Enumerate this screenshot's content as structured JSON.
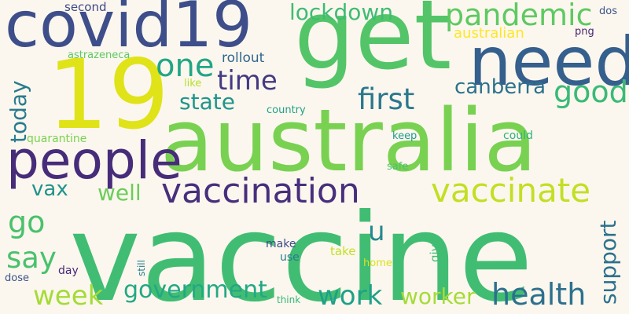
{
  "wordcloud": {
    "background": "#fbf7ee",
    "words": [
      {
        "text": "vaccine",
        "color": "#41bd73",
        "vertical": false
      },
      {
        "text": "australia",
        "color": "#79d151",
        "vertical": false
      },
      {
        "text": "get",
        "color": "#53c568",
        "vertical": false
      },
      {
        "text": "19",
        "color": "#dfe318",
        "vertical": false
      },
      {
        "text": "covid19",
        "color": "#3d4e8a",
        "vertical": false
      },
      {
        "text": "need",
        "color": "#355f8d",
        "vertical": false
      },
      {
        "text": "people",
        "color": "#472c7a",
        "vertical": false
      },
      {
        "text": "vaccination",
        "color": "#472f7d",
        "vertical": false
      },
      {
        "text": "vaccinate",
        "color": "#c2df23",
        "vertical": false
      },
      {
        "text": "pandemic",
        "color": "#5ec962",
        "vertical": false
      },
      {
        "text": "first",
        "color": "#2a788e",
        "vertical": false
      },
      {
        "text": "time",
        "color": "#443a83",
        "vertical": false
      },
      {
        "text": "one",
        "color": "#21a685",
        "vertical": false
      },
      {
        "text": "good",
        "color": "#3aba76",
        "vertical": false
      },
      {
        "text": "health",
        "color": "#2d708e",
        "vertical": false
      },
      {
        "text": "work",
        "color": "#1fa187",
        "vertical": false
      },
      {
        "text": "government",
        "color": "#22a884",
        "vertical": false
      },
      {
        "text": "week",
        "color": "#a5db36",
        "vertical": false
      },
      {
        "text": "worker",
        "color": "#a5db36",
        "vertical": false
      },
      {
        "text": "say",
        "color": "#4ac16d",
        "vertical": false
      },
      {
        "text": "go",
        "color": "#4ac16d",
        "vertical": false
      },
      {
        "text": "well",
        "color": "#6ccd5a",
        "vertical": false
      },
      {
        "text": "state",
        "color": "#1f958b",
        "vertical": false
      },
      {
        "text": "canberra",
        "color": "#2c728e",
        "vertical": false
      },
      {
        "text": "lockdown",
        "color": "#3fbc73",
        "vertical": false
      },
      {
        "text": "vax",
        "color": "#20928c",
        "vertical": false
      },
      {
        "text": "today",
        "color": "#297b8e",
        "vertical": true
      },
      {
        "text": "support",
        "color": "#2c718e",
        "vertical": true
      },
      {
        "text": "u",
        "color": "#23898e",
        "vertical": false
      },
      {
        "text": "australian",
        "color": "#fde725",
        "vertical": false
      },
      {
        "text": "rollout",
        "color": "#31668e",
        "vertical": false
      },
      {
        "text": "second",
        "color": "#3e4989",
        "vertical": false
      },
      {
        "text": "astrazeneca",
        "color": "#5ec962",
        "vertical": false
      },
      {
        "text": "dos",
        "color": "#3b528b",
        "vertical": false
      },
      {
        "text": "png",
        "color": "#482475",
        "vertical": false
      },
      {
        "text": "like",
        "color": "#b5de2b",
        "vertical": false
      },
      {
        "text": "country",
        "color": "#1fa088",
        "vertical": false
      },
      {
        "text": "quarantine",
        "color": "#7ad151",
        "vertical": false
      },
      {
        "text": "keep",
        "color": "#1e9b8a",
        "vertical": false
      },
      {
        "text": "could",
        "color": "#2db27d",
        "vertical": false
      },
      {
        "text": "safe",
        "color": "#4ac16d",
        "vertical": false
      },
      {
        "text": "make",
        "color": "#3e4a89",
        "vertical": false
      },
      {
        "text": "use",
        "color": "#287c8e",
        "vertical": false
      },
      {
        "text": "take",
        "color": "#c2df23",
        "vertical": false
      },
      {
        "text": "give",
        "color": "#3fbc73",
        "vertical": true
      },
      {
        "text": "home",
        "color": "#d8e219",
        "vertical": false
      },
      {
        "text": "still",
        "color": "#277f8e",
        "vertical": true
      },
      {
        "text": "day",
        "color": "#482878",
        "vertical": false
      },
      {
        "text": "dose",
        "color": "#3b528b",
        "vertical": false
      },
      {
        "text": "think",
        "color": "#35b779",
        "vertical": false
      }
    ]
  }
}
